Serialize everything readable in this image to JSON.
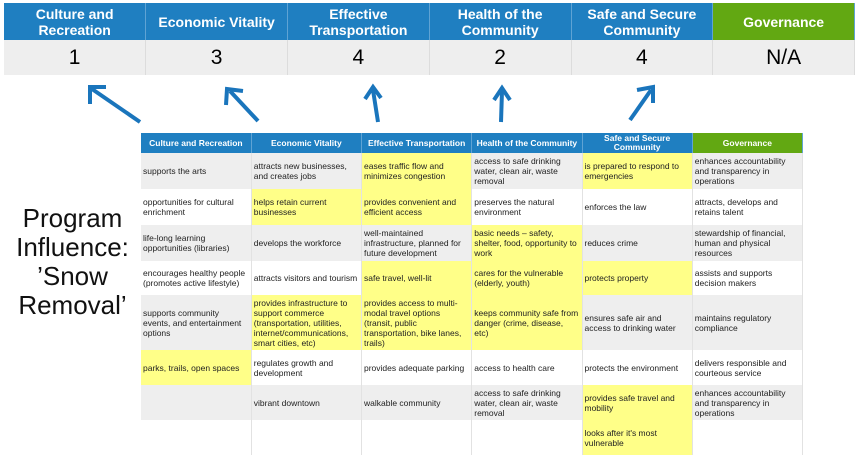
{
  "colors": {
    "header_blue": "#1f7fc1",
    "governance_green": "#62a812",
    "highlight": "#ffff88",
    "arrow": "#1a75bc"
  },
  "scores": {
    "headers": [
      "Culture and Recreation",
      "Economic Vitality",
      "Effective Transportation",
      "Health of the Community",
      "Safe and Secure Community",
      "Governance"
    ],
    "values": [
      "1",
      "3",
      "4",
      "2",
      "4",
      "N/A"
    ]
  },
  "title": {
    "line1": "Program",
    "line2": "Influence:",
    "line3": "’Snow",
    "line4": "Removal’"
  },
  "matrix": {
    "headers": [
      "Culture and Recreation",
      "Economic Vitality",
      "Effective Transportation",
      "Health of the Community",
      "Safe and Secure Community",
      "Governance"
    ],
    "rows": [
      {
        "cells": [
          "supports the arts",
          "attracts new businesses, and creates jobs",
          "eases traffic flow and minimizes congestion",
          "access to safe drinking water, clean air, waste removal",
          "is prepared to respond to emergencies",
          "enhances accountability and transparency in operations"
        ],
        "highlighted": [
          false,
          false,
          true,
          false,
          true,
          false
        ]
      },
      {
        "cells": [
          "opportunities for cultural enrichment",
          "helps retain current businesses",
          "provides convenient and efficient access",
          "preserves the natural environment",
          "enforces the law",
          "attracts, develops and retains talent"
        ],
        "highlighted": [
          false,
          true,
          true,
          false,
          false,
          false
        ]
      },
      {
        "cells": [
          "life-long learning opportunities (libraries)",
          "develops the workforce",
          "well-maintained infrastructure, planned for future development",
          "basic needs – safety, shelter, food, opportunity to work",
          "reduces crime",
          "stewardship of financial, human and physical resources"
        ],
        "highlighted": [
          false,
          false,
          false,
          true,
          false,
          false
        ]
      },
      {
        "cells": [
          "encourages healthy people (promotes active lifestyle)",
          "attracts visitors and tourism",
          "safe travel, well-lit",
          "cares for the vulnerable (elderly, youth)",
          "protects property",
          "assists and supports decision makers"
        ],
        "highlighted": [
          false,
          false,
          true,
          true,
          true,
          false
        ]
      },
      {
        "cells": [
          "supports community events, and entertainment options",
          "provides infrastructure to support commerce (transportation, utilities, internet/communications, smart cities, etc)",
          "provides access to multi-modal travel options (transit, public transportation, bike lanes, trails)",
          "keeps community safe from danger (crime, disease, etc)",
          "ensures safe air and access to drinking water",
          "maintains regulatory compliance"
        ],
        "highlighted": [
          false,
          true,
          true,
          true,
          false,
          false
        ]
      },
      {
        "cells": [
          "parks, trails, open spaces",
          "regulates growth and development",
          "provides adequate parking",
          "access to health care",
          "protects the environment",
          "delivers responsible and courteous service"
        ],
        "highlighted": [
          true,
          false,
          false,
          false,
          false,
          false
        ]
      },
      {
        "cells": [
          "",
          "vibrant downtown",
          "walkable community",
          "access to safe drinking water, clean air, waste removal",
          "provides safe travel and mobility",
          "enhances accountability and transparency in operations"
        ],
        "highlighted": [
          false,
          false,
          false,
          false,
          true,
          false
        ]
      },
      {
        "cells": [
          "",
          "",
          "",
          "",
          "looks after it's most vulnerable",
          ""
        ],
        "highlighted": [
          false,
          false,
          false,
          false,
          true,
          false
        ]
      }
    ]
  }
}
